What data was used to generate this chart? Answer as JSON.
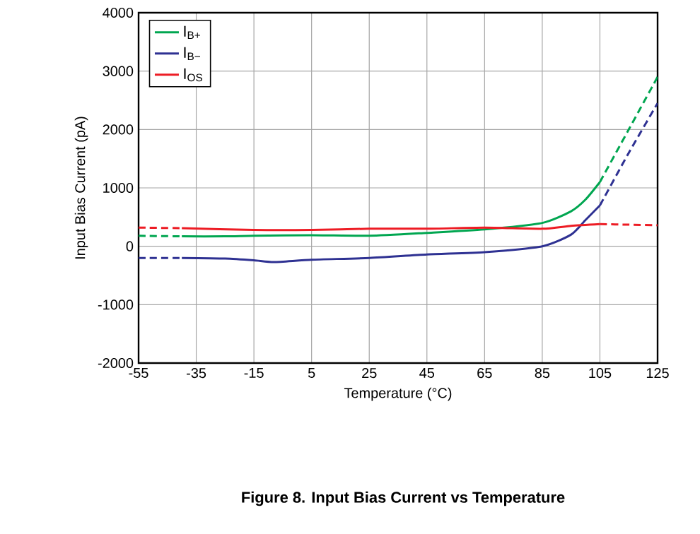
{
  "chart_data": {
    "type": "line",
    "title": "Figure 8. Input Bias Current vs Temperature",
    "xlabel": "Temperature (°C)",
    "ylabel": "Input Bias Current (pA)",
    "xlim": [
      -55,
      125
    ],
    "ylim": [
      -2000,
      4000
    ],
    "xticks": [
      -55,
      -35,
      -15,
      5,
      25,
      45,
      65,
      85,
      105,
      125
    ],
    "yticks": [
      -2000,
      -1000,
      0,
      1000,
      2000,
      3000,
      4000
    ],
    "grid": true,
    "legend": "top left",
    "series": [
      {
        "name": "I$_{B+}$",
        "color": "#00a650",
        "line_style": "solid",
        "x": [
          -40,
          -25,
          -15,
          5,
          25,
          45,
          65,
          85,
          95,
          100,
          105
        ],
        "values": [
          170,
          170,
          180,
          190,
          180,
          230,
          290,
          400,
          600,
          800,
          1100
        ]
      },
      {
        "name": "I$_{B−}$",
        "color": "#2e3192",
        "line_style": "solid",
        "x": [
          -40,
          -25,
          -15,
          -8,
          5,
          25,
          45,
          65,
          85,
          95,
          100,
          105
        ],
        "values": [
          -200,
          -210,
          -240,
          -270,
          -230,
          -200,
          -140,
          -100,
          0,
          200,
          450,
          700
        ]
      },
      {
        "name": "I$_{OS}$",
        "color": "#ed1c24",
        "line_style": "solid",
        "x": [
          -40,
          -15,
          5,
          25,
          45,
          65,
          85,
          95,
          105
        ],
        "values": [
          310,
          280,
          280,
          300,
          300,
          320,
          300,
          350,
          380
        ]
      },
      {
        "color": "#00a650",
        "line_style": "dashed",
        "x": [
          -55,
          -40,
          0,
          105,
          115,
          125
        ],
        "values": [
          180,
          170,
          null,
          1100,
          2000,
          2900
        ]
      },
      {
        "color": "#2e3192",
        "line_style": "dashed",
        "x": [
          -55,
          -40,
          0,
          105,
          115,
          125
        ],
        "values": [
          -200,
          -200,
          null,
          700,
          1600,
          2450
        ]
      },
      {
        "color": "#ed1c24",
        "line_style": "dashed",
        "x": [
          -55,
          -40,
          0,
          105,
          115,
          125
        ],
        "values": [
          320,
          310,
          null,
          380,
          370,
          360
        ]
      }
    ]
  }
}
